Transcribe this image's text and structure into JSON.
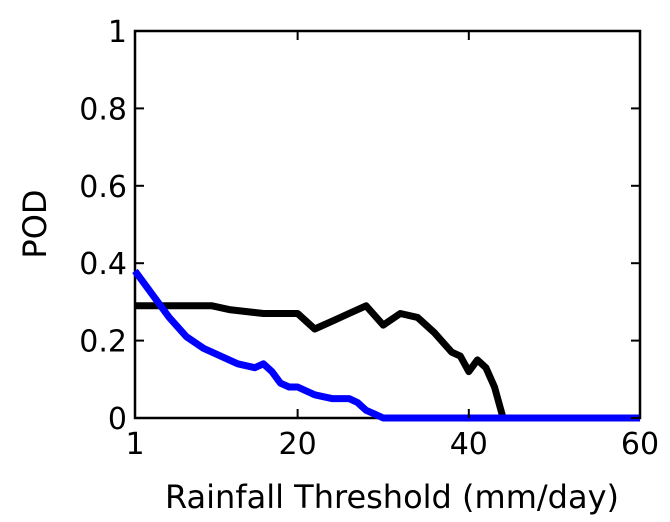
{
  "chart_data": {
    "type": "line",
    "title": "",
    "xlabel": "Rainfall Threshold (mm/day)",
    "ylabel": "POD",
    "xlim": [
      1,
      60
    ],
    "ylim": [
      0,
      1
    ],
    "x_ticks": [
      {
        "value": 1,
        "label": "1"
      },
      {
        "value": 20,
        "label": "20"
      },
      {
        "value": 40,
        "label": "40"
      },
      {
        "value": 60,
        "label": "60"
      }
    ],
    "y_ticks": [
      {
        "value": 0,
        "label": "0"
      },
      {
        "value": 0.2,
        "label": "0.2"
      },
      {
        "value": 0.4,
        "label": "0.4"
      },
      {
        "value": 0.6,
        "label": "0.6"
      },
      {
        "value": 0.8,
        "label": "0.8"
      },
      {
        "value": 1,
        "label": "1"
      }
    ],
    "grid": false,
    "legend": false,
    "series": [
      {
        "color": "#000000",
        "x": [
          1,
          4,
          7,
          10,
          12,
          16,
          19,
          20,
          22,
          24,
          26,
          28,
          30,
          32,
          34,
          36,
          38,
          39,
          40,
          41,
          42,
          43,
          44,
          45,
          60
        ],
        "y": [
          0.29,
          0.29,
          0.29,
          0.29,
          0.28,
          0.27,
          0.27,
          0.27,
          0.23,
          0.25,
          0.27,
          0.29,
          0.24,
          0.27,
          0.26,
          0.22,
          0.17,
          0.16,
          0.12,
          0.15,
          0.13,
          0.08,
          0.0,
          0.0,
          0.0
        ]
      },
      {
        "color": "#0000ff",
        "x": [
          1,
          3,
          5,
          7,
          9,
          11,
          13,
          15,
          16,
          17,
          18,
          19,
          20,
          22,
          24,
          26,
          27,
          28,
          29,
          30,
          45,
          60
        ],
        "y": [
          0.38,
          0.32,
          0.26,
          0.21,
          0.18,
          0.16,
          0.14,
          0.13,
          0.14,
          0.12,
          0.09,
          0.08,
          0.08,
          0.06,
          0.05,
          0.05,
          0.04,
          0.02,
          0.01,
          0.0,
          0.0,
          0.0
        ]
      }
    ]
  }
}
